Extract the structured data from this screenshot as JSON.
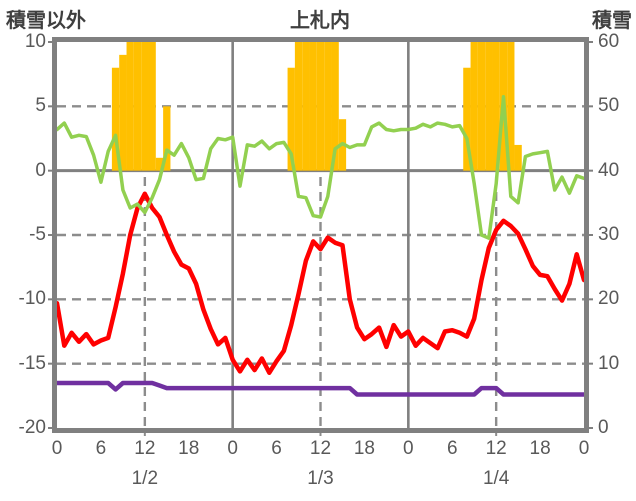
{
  "titles": {
    "left": "積雪以外",
    "center": "上札内",
    "right": "積雪"
  },
  "axes": {
    "left": {
      "title": "積雪以外",
      "ticks": [
        "10",
        "5",
        "0",
        "-5",
        "-10",
        "-15",
        "-20"
      ]
    },
    "right": {
      "title": "積雪",
      "ticks": [
        "60",
        "50",
        "40",
        "30",
        "20",
        "10",
        "0"
      ]
    },
    "x": {
      "hour_ticks": [
        "0",
        "6",
        "12",
        "18",
        "0",
        "6",
        "12",
        "18",
        "0",
        "6",
        "12",
        "18",
        "0"
      ],
      "date_labels": [
        "1/2",
        "1/3",
        "1/4"
      ]
    }
  },
  "colors": {
    "bars": "#FFC000",
    "temperature_line": "#FF0000",
    "snow_line": "#92D050",
    "purple_line": "#7030A0",
    "grid": "#8c8c8c",
    "border": "#808080",
    "tick_text": "#595959",
    "title_text": "#3f3f3f"
  },
  "chart_data": {
    "type": "bar",
    "subtype": "combo-bar-and-lines",
    "title": "上札内",
    "x_axis": {
      "hours_total": 72,
      "hour_tick_step": 6,
      "dates": [
        "1/2",
        "1/3",
        "1/4"
      ]
    },
    "left_axis": {
      "label": "積雪以外",
      "range": [
        -20,
        10
      ],
      "gridlines_dashed_at": [
        5,
        -5,
        -10,
        -15
      ],
      "gridline_solid_at": [
        0
      ]
    },
    "right_axis": {
      "label": "積雪",
      "range": [
        0,
        60
      ]
    },
    "x_gridlines_solid_hours": [
      24,
      48
    ],
    "x_gridlines_dashed_hours": [
      12,
      36,
      60
    ],
    "series": [
      {
        "name": "sunshine-bars",
        "type": "bar",
        "axis": "left",
        "color": "#FFC000",
        "points": [
          {
            "hour": 8,
            "value": 8
          },
          {
            "hour": 9,
            "value": 9
          },
          {
            "hour": 10,
            "value": 10
          },
          {
            "hour": 11,
            "value": 10
          },
          {
            "hour": 12,
            "value": 10
          },
          {
            "hour": 13,
            "value": 10
          },
          {
            "hour": 14,
            "value": 1
          },
          {
            "hour": 15,
            "value": 5
          },
          {
            "hour": 32,
            "value": 8
          },
          {
            "hour": 33,
            "value": 10
          },
          {
            "hour": 34,
            "value": 10
          },
          {
            "hour": 35,
            "value": 10
          },
          {
            "hour": 36,
            "value": 10
          },
          {
            "hour": 37,
            "value": 10
          },
          {
            "hour": 38,
            "value": 10
          },
          {
            "hour": 39,
            "value": 4
          },
          {
            "hour": 56,
            "value": 8
          },
          {
            "hour": 57,
            "value": 10
          },
          {
            "hour": 58,
            "value": 10
          },
          {
            "hour": 59,
            "value": 10
          },
          {
            "hour": 60,
            "value": 10
          },
          {
            "hour": 61,
            "value": 10
          },
          {
            "hour": 62,
            "value": 10
          },
          {
            "hour": 63,
            "value": 2
          }
        ]
      },
      {
        "name": "temperature",
        "type": "line",
        "axis": "left",
        "color": "#FF0000",
        "values": [
          -10.3,
          -13.6,
          -12.6,
          -13.3,
          -12.7,
          -13.5,
          -13.2,
          -13.0,
          -10.6,
          -8.0,
          -5.0,
          -2.9,
          -1.8,
          -2.9,
          -3.6,
          -5.0,
          -6.3,
          -7.3,
          -7.6,
          -8.8,
          -10.8,
          -12.3,
          -13.5,
          -13.0,
          -14.7,
          -15.6,
          -14.7,
          -15.5,
          -14.6,
          -15.7,
          -14.8,
          -14.0,
          -12.0,
          -9.6,
          -7.0,
          -5.5,
          -6.1,
          -5.2,
          -5.6,
          -5.8,
          -10.0,
          -12.2,
          -13.1,
          -12.7,
          -12.2,
          -13.7,
          -12.0,
          -12.9,
          -12.5,
          -13.6,
          -13.0,
          -13.4,
          -13.8,
          -12.5,
          -12.4,
          -12.6,
          -12.9,
          -11.5,
          -8.5,
          -6.0,
          -4.6,
          -3.9,
          -4.3,
          -4.9,
          -6.1,
          -7.4,
          -8.1,
          -8.2,
          -9.2,
          -10.1,
          -8.8,
          -6.5,
          -8.5
        ]
      },
      {
        "name": "snow-depth",
        "type": "line",
        "axis": "right",
        "color": "#92D050",
        "values": [
          46.4,
          47.4,
          45.2,
          45.5,
          45.3,
          42.4,
          38.2,
          43.0,
          45.5,
          37.0,
          34.2,
          34.8,
          33.5,
          35.8,
          38.6,
          43.2,
          42.4,
          44.2,
          42.0,
          38.6,
          38.8,
          43.4,
          45.0,
          44.8,
          45.2,
          37.6,
          44.0,
          43.8,
          44.6,
          43.4,
          44.2,
          44.4,
          42.6,
          36.0,
          35.8,
          33.0,
          32.8,
          36.0,
          43.4,
          44.2,
          43.6,
          44.0,
          44.0,
          46.8,
          47.4,
          46.4,
          46.2,
          46.4,
          46.4,
          46.6,
          47.2,
          46.8,
          47.4,
          47.2,
          46.8,
          47.0,
          45.0,
          38.0,
          30.0,
          29.5,
          38.0,
          51.5,
          36.0,
          35.0,
          42.2,
          42.6,
          42.8,
          43.0,
          37.0,
          39.0,
          36.5,
          39.2,
          38.8
        ]
      },
      {
        "name": "purple-flat",
        "type": "line",
        "axis": "left",
        "color": "#7030A0",
        "values": [
          -16.5,
          -16.5,
          -16.5,
          -16.5,
          -16.5,
          -16.5,
          -16.5,
          -16.5,
          -17.0,
          -16.5,
          -16.5,
          -16.5,
          -16.5,
          -16.5,
          -16.7,
          -16.9,
          -16.9,
          -16.9,
          -16.9,
          -16.9,
          -16.9,
          -16.9,
          -16.9,
          -16.9,
          -16.9,
          -16.9,
          -16.9,
          -16.9,
          -16.9,
          -16.9,
          -16.9,
          -16.9,
          -16.9,
          -16.9,
          -16.9,
          -16.9,
          -16.9,
          -16.9,
          -16.9,
          -16.9,
          -16.9,
          -17.4,
          -17.4,
          -17.4,
          -17.4,
          -17.4,
          -17.4,
          -17.4,
          -17.4,
          -17.4,
          -17.4,
          -17.4,
          -17.4,
          -17.4,
          -17.4,
          -17.4,
          -17.4,
          -17.4,
          -16.9,
          -16.9,
          -16.9,
          -17.4,
          -17.4,
          -17.4,
          -17.4,
          -17.4,
          -17.4,
          -17.4,
          -17.4,
          -17.4,
          -17.4,
          -17.4,
          -17.4
        ]
      }
    ]
  }
}
